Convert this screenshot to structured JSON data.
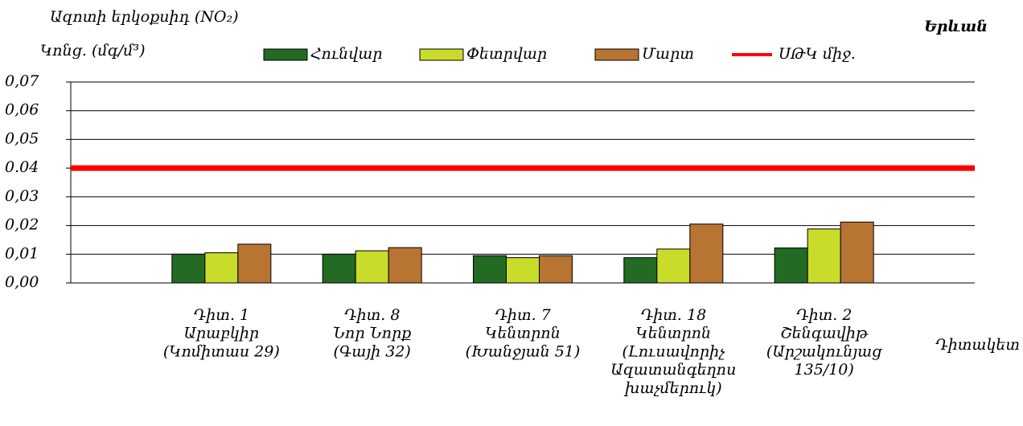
{
  "chart_data": {
    "type": "bar",
    "title": "Ազոտի երկօքսիդ  (NO₂)",
    "y_label": "Կոնց. (մգ/մ³)",
    "city": "Երևան",
    "x_label": "Դիտակետ",
    "categories": [
      null,
      [
        "Դիտ. 1",
        "Արաբկիր",
        "(Կոմիտաս 29)"
      ],
      [
        "Դիտ. 8",
        "Նոր Նորք",
        "(Գայի 32)"
      ],
      [
        "Դիտ. 7",
        "Կենտրոն",
        "(Խանջյան 51)"
      ],
      [
        "Դիտ. 18",
        "Կենտրոն",
        "(Լուսավորիչ",
        "Ազատանգեղոս",
        "խաչմերուկ)"
      ],
      [
        "Դիտ. 2",
        "Շենգավիթ",
        "(Արշակունյաց",
        "135/10)"
      ],
      null
    ],
    "series": [
      {
        "name": "Հունվար",
        "type": "bar",
        "color": "#236a23",
        "values": [
          null,
          0.01,
          0.01,
          0.0095,
          0.0088,
          0.0122,
          null
        ]
      },
      {
        "name": "Փետրվար",
        "type": "bar",
        "color": "#c9dc2a",
        "values": [
          null,
          0.0105,
          0.0112,
          0.0088,
          0.0118,
          0.0188,
          null
        ]
      },
      {
        "name": "Մարտ",
        "type": "bar",
        "color": "#b87433",
        "values": [
          null,
          0.0135,
          0.0123,
          0.0095,
          0.0205,
          0.0212,
          null
        ]
      },
      {
        "name": "ՍԹԿ միջ.",
        "type": "line",
        "color": "#ff0000",
        "values": [
          0.04,
          0.04,
          0.04,
          0.04,
          0.04,
          0.04,
          0.04
        ]
      }
    ],
    "ylim": [
      0,
      0.07
    ],
    "yticks": [
      {
        "value": 0,
        "label": "0,00"
      },
      {
        "value": 0.01,
        "label": "0,01"
      },
      {
        "value": 0.02,
        "label": "0,02"
      },
      {
        "value": 0.03,
        "label": "0,03"
      },
      {
        "value": 0.04,
        "label": "0.04"
      },
      {
        "value": 0.05,
        "label": "0,05"
      },
      {
        "value": 0.06,
        "label": "0,06"
      },
      {
        "value": 0.07,
        "label": "0,07"
      }
    ],
    "grid": true
  }
}
